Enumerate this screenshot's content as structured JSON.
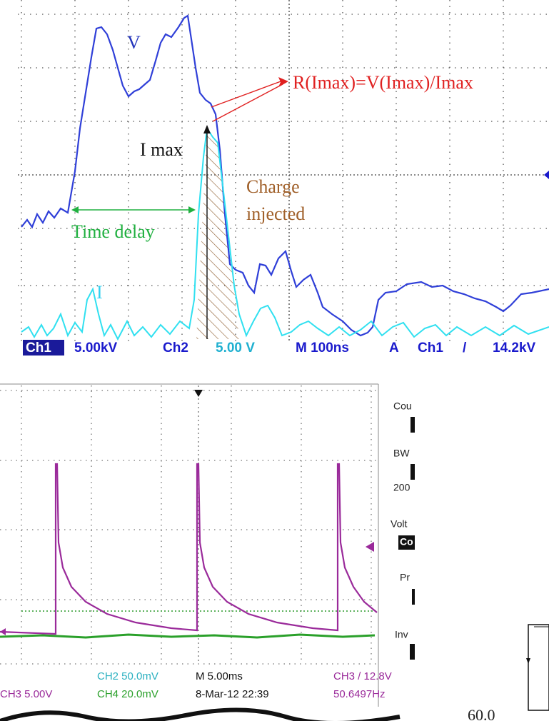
{
  "top_scope": {
    "labels": {
      "v": "V",
      "r_formula": "R(Imax)=V(Imax)/Imax",
      "i_max": "I max",
      "charge": "Charge",
      "injected": "injected",
      "time_delay": "Time delay",
      "i": "I"
    },
    "status": [
      "Ch1",
      "5.00kV",
      "Ch2",
      "5.00 V",
      "M 100ns",
      "A",
      "Ch1",
      "/",
      "14.2kV"
    ]
  },
  "bottom_scope": {
    "menu": [
      "Cou",
      "BW",
      "200",
      "Volt",
      "Co",
      "Pr",
      "Inv"
    ],
    "readout": [
      "CH2 50.0mV",
      "M 5.00ms",
      "CH3 / 12.8V",
      "CH3 5.00V",
      "CH4 20.0mV",
      "8-Mar-12 22:39",
      "50.6497Hz"
    ]
  },
  "caption_fragment": "60.0"
}
